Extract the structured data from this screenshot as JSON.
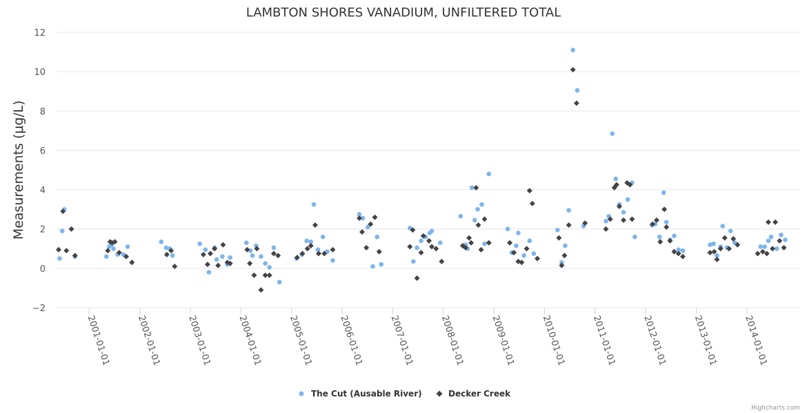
{
  "chart_data": {
    "type": "scatter",
    "title": "LAMBTON SHORES VANADIUM, UNFILTERED TOTAL",
    "ylabel": "Measurements (μg/L)",
    "xlabel": "",
    "ylim": [
      -2,
      12
    ],
    "yticks": [
      "−2",
      "0",
      "2",
      "4",
      "6",
      "8",
      "10",
      "12"
    ],
    "ytick_values": [
      -2,
      0,
      2,
      4,
      6,
      8,
      10,
      12
    ],
    "xlim": [
      "2000-05-10",
      "2015-01-20"
    ],
    "xticks": [
      "2001-01-01",
      "2002-01-01",
      "2003-01-01",
      "2004-01-01",
      "2005-01-01",
      "2006-01-01",
      "2007-01-01",
      "2008-01-01",
      "2009-01-01",
      "2010-01-01",
      "2011-01-01",
      "2012-01-01",
      "2013-01-01",
      "2014-01-01"
    ],
    "grid": true,
    "legend_position": "bottom",
    "credits": "Highcharts.com",
    "series": [
      {
        "name": "The Cut (Ausable River)",
        "color": "#7cb5ec",
        "marker": "circle",
        "points": [
          [
            "2000-06-01",
            0.5
          ],
          [
            "2000-06-20",
            1.9
          ],
          [
            "2000-07-05",
            3.0
          ],
          [
            "2000-09-20",
            0.6
          ],
          [
            "2001-05-05",
            0.6
          ],
          [
            "2001-05-25",
            1.1
          ],
          [
            "2001-06-10",
            1.2
          ],
          [
            "2001-06-25",
            1.0
          ],
          [
            "2001-07-25",
            0.7
          ],
          [
            "2001-09-05",
            0.7
          ],
          [
            "2001-10-05",
            1.1
          ],
          [
            "2002-06-05",
            1.35
          ],
          [
            "2002-07-10",
            1.05
          ],
          [
            "2002-08-05",
            1.0
          ],
          [
            "2002-08-25",
            0.65
          ],
          [
            "2003-03-10",
            1.25
          ],
          [
            "2003-04-20",
            0.95
          ],
          [
            "2003-05-15",
            -0.2
          ],
          [
            "2003-06-25",
            1.05
          ],
          [
            "2003-07-10",
            0.45
          ],
          [
            "2003-08-20",
            0.6
          ],
          [
            "2003-09-25",
            0.2
          ],
          [
            "2003-10-15",
            0.55
          ],
          [
            "2004-02-10",
            1.3
          ],
          [
            "2004-03-10",
            0.9
          ],
          [
            "2004-03-25",
            0.65
          ],
          [
            "2004-04-20",
            1.15
          ],
          [
            "2004-05-25",
            0.6
          ],
          [
            "2004-06-25",
            0.25
          ],
          [
            "2004-07-25",
            0.05
          ],
          [
            "2004-08-25",
            1.05
          ],
          [
            "2004-10-05",
            -0.7
          ],
          [
            "2005-02-05",
            0.5
          ],
          [
            "2005-03-15",
            0.7
          ],
          [
            "2005-04-20",
            1.4
          ],
          [
            "2005-05-20",
            1.35
          ],
          [
            "2005-06-10",
            3.25
          ],
          [
            "2005-07-10",
            0.95
          ],
          [
            "2005-08-15",
            1.6
          ],
          [
            "2005-09-15",
            0.85
          ],
          [
            "2005-10-25",
            0.4
          ],
          [
            "2006-05-05",
            2.75
          ],
          [
            "2006-05-30",
            2.55
          ],
          [
            "2006-07-05",
            2.1
          ],
          [
            "2006-08-10",
            0.1
          ],
          [
            "2006-09-10",
            1.6
          ],
          [
            "2006-10-10",
            0.2
          ],
          [
            "2007-05-05",
            2.05
          ],
          [
            "2007-05-30",
            0.35
          ],
          [
            "2007-06-25",
            1.05
          ],
          [
            "2007-07-25",
            1.4
          ],
          [
            "2007-08-25",
            1.6
          ],
          [
            "2007-09-25",
            1.8
          ],
          [
            "2007-10-10",
            1.9
          ],
          [
            "2007-12-10",
            1.3
          ],
          [
            "2008-05-05",
            2.65
          ],
          [
            "2008-06-10",
            1.2
          ],
          [
            "2008-06-25",
            1.0
          ],
          [
            "2008-07-25",
            4.1
          ],
          [
            "2008-08-15",
            2.45
          ],
          [
            "2008-09-05",
            3.0
          ],
          [
            "2008-10-05",
            3.25
          ],
          [
            "2008-10-25",
            1.25
          ],
          [
            "2008-11-25",
            4.8
          ],
          [
            "2009-04-10",
            2.0
          ],
          [
            "2009-05-10",
            0.8
          ],
          [
            "2009-06-10",
            1.15
          ],
          [
            "2009-06-25",
            1.8
          ],
          [
            "2009-08-05",
            0.65
          ],
          [
            "2009-09-15",
            1.4
          ],
          [
            "2009-10-15",
            0.75
          ],
          [
            "2010-04-05",
            1.95
          ],
          [
            "2010-05-05",
            0.3
          ],
          [
            "2010-05-30",
            1.15
          ],
          [
            "2010-06-25",
            2.95
          ],
          [
            "2010-07-25",
            11.1
          ],
          [
            "2010-08-25",
            9.05
          ],
          [
            "2010-10-10",
            2.15
          ],
          [
            "2011-03-20",
            2.4
          ],
          [
            "2011-04-10",
            2.65
          ],
          [
            "2011-05-05",
            6.85
          ],
          [
            "2011-05-30",
            4.55
          ],
          [
            "2011-06-25",
            3.25
          ],
          [
            "2011-07-25",
            2.85
          ],
          [
            "2011-08-25",
            3.5
          ],
          [
            "2011-09-25",
            4.35
          ],
          [
            "2011-10-15",
            1.6
          ],
          [
            "2012-02-15",
            2.2
          ],
          [
            "2012-03-10",
            2.25
          ],
          [
            "2012-04-10",
            1.6
          ],
          [
            "2012-05-10",
            3.85
          ],
          [
            "2012-05-30",
            2.35
          ],
          [
            "2012-06-25",
            1.45
          ],
          [
            "2012-07-25",
            1.65
          ],
          [
            "2012-08-25",
            0.95
          ],
          [
            "2012-09-25",
            0.9
          ],
          [
            "2013-04-10",
            1.2
          ],
          [
            "2013-05-05",
            1.25
          ],
          [
            "2013-05-30",
            0.65
          ],
          [
            "2013-06-25",
            1.1
          ],
          [
            "2013-07-10",
            2.15
          ],
          [
            "2013-08-10",
            1.05
          ],
          [
            "2013-09-05",
            1.9
          ],
          [
            "2013-10-05",
            1.3
          ],
          [
            "2014-04-10",
            1.1
          ],
          [
            "2014-05-10",
            1.1
          ],
          [
            "2014-06-05",
            1.4
          ],
          [
            "2014-06-25",
            1.6
          ],
          [
            "2014-08-05",
            1.0
          ],
          [
            "2014-09-05",
            1.7
          ],
          [
            "2014-10-05",
            1.45
          ]
        ]
      },
      {
        "name": "Decker Creek",
        "color": "#434348",
        "marker": "diamond",
        "points": [
          [
            "2000-05-25",
            0.95
          ],
          [
            "2000-06-25",
            2.9
          ],
          [
            "2000-07-20",
            0.9
          ],
          [
            "2000-08-25",
            2.0
          ],
          [
            "2000-09-20",
            0.65
          ],
          [
            "2001-05-15",
            0.9
          ],
          [
            "2001-06-01",
            1.35
          ],
          [
            "2001-06-15",
            1.3
          ],
          [
            "2001-07-05",
            1.35
          ],
          [
            "2001-08-05",
            0.8
          ],
          [
            "2001-09-25",
            0.6
          ],
          [
            "2001-11-05",
            0.3
          ],
          [
            "2002-07-15",
            0.7
          ],
          [
            "2002-08-15",
            0.9
          ],
          [
            "2002-09-10",
            0.1
          ],
          [
            "2003-04-05",
            0.7
          ],
          [
            "2003-05-05",
            0.2
          ],
          [
            "2003-05-25",
            0.75
          ],
          [
            "2003-06-25",
            1.0
          ],
          [
            "2003-07-20",
            0.15
          ],
          [
            "2003-08-25",
            1.2
          ],
          [
            "2003-09-25",
            0.3
          ],
          [
            "2003-10-15",
            0.25
          ],
          [
            "2004-02-15",
            0.95
          ],
          [
            "2004-03-05",
            0.25
          ],
          [
            "2004-04-05",
            -0.35
          ],
          [
            "2004-04-25",
            1.0
          ],
          [
            "2004-05-25",
            -1.1
          ],
          [
            "2004-06-25",
            -0.35
          ],
          [
            "2004-07-25",
            -0.35
          ],
          [
            "2004-08-25",
            0.75
          ],
          [
            "2004-09-25",
            0.65
          ],
          [
            "2005-02-10",
            0.55
          ],
          [
            "2005-03-20",
            0.75
          ],
          [
            "2005-04-25",
            1.0
          ],
          [
            "2005-05-20",
            1.15
          ],
          [
            "2005-06-20",
            2.2
          ],
          [
            "2005-07-15",
            0.75
          ],
          [
            "2005-08-25",
            0.75
          ],
          [
            "2005-10-25",
            0.95
          ],
          [
            "2006-05-05",
            2.55
          ],
          [
            "2006-05-25",
            1.85
          ],
          [
            "2006-06-25",
            1.05
          ],
          [
            "2006-07-25",
            2.25
          ],
          [
            "2006-08-25",
            2.6
          ],
          [
            "2006-09-25",
            0.85
          ],
          [
            "2007-05-05",
            1.1
          ],
          [
            "2007-05-25",
            1.95
          ],
          [
            "2007-06-25",
            -0.5
          ],
          [
            "2007-07-25",
            0.8
          ],
          [
            "2007-08-10",
            1.65
          ],
          [
            "2007-09-20",
            1.4
          ],
          [
            "2007-10-10",
            1.1
          ],
          [
            "2007-11-10",
            1.0
          ],
          [
            "2007-12-20",
            0.35
          ],
          [
            "2008-05-20",
            1.15
          ],
          [
            "2008-06-10",
            1.05
          ],
          [
            "2008-07-05",
            1.55
          ],
          [
            "2008-07-20",
            1.3
          ],
          [
            "2008-08-25",
            4.1
          ],
          [
            "2008-09-10",
            2.2
          ],
          [
            "2008-09-30",
            0.95
          ],
          [
            "2008-10-25",
            2.5
          ],
          [
            "2008-11-25",
            1.3
          ],
          [
            "2009-04-25",
            1.3
          ],
          [
            "2009-05-25",
            0.8
          ],
          [
            "2009-06-25",
            0.35
          ],
          [
            "2009-07-20",
            0.3
          ],
          [
            "2009-08-25",
            1.0
          ],
          [
            "2009-09-15",
            3.95
          ],
          [
            "2009-10-05",
            3.3
          ],
          [
            "2009-11-10",
            0.5
          ],
          [
            "2010-04-15",
            1.55
          ],
          [
            "2010-05-05",
            0.15
          ],
          [
            "2010-05-25",
            0.65
          ],
          [
            "2010-06-25",
            2.2
          ],
          [
            "2010-07-25",
            10.1
          ],
          [
            "2010-08-20",
            8.4
          ],
          [
            "2010-10-20",
            2.3
          ],
          [
            "2011-03-20",
            2.0
          ],
          [
            "2011-04-20",
            2.5
          ],
          [
            "2011-05-20",
            4.1
          ],
          [
            "2011-06-05",
            4.25
          ],
          [
            "2011-06-25",
            3.15
          ],
          [
            "2011-07-25",
            2.45
          ],
          [
            "2011-08-20",
            4.35
          ],
          [
            "2011-09-10",
            4.25
          ],
          [
            "2011-09-25",
            2.5
          ],
          [
            "2012-02-20",
            2.25
          ],
          [
            "2012-03-20",
            2.45
          ],
          [
            "2012-04-15",
            1.35
          ],
          [
            "2012-05-15",
            3.0
          ],
          [
            "2012-05-30",
            2.1
          ],
          [
            "2012-06-25",
            1.4
          ],
          [
            "2012-07-25",
            0.85
          ],
          [
            "2012-08-25",
            0.75
          ],
          [
            "2012-09-25",
            0.6
          ],
          [
            "2013-04-10",
            0.8
          ],
          [
            "2013-05-10",
            0.85
          ],
          [
            "2013-05-30",
            0.45
          ],
          [
            "2013-06-25",
            1.0
          ],
          [
            "2013-07-25",
            1.55
          ],
          [
            "2013-08-25",
            1.0
          ],
          [
            "2013-09-25",
            1.5
          ],
          [
            "2013-10-25",
            1.2
          ],
          [
            "2014-03-20",
            0.75
          ],
          [
            "2014-04-25",
            0.85
          ],
          [
            "2014-05-25",
            0.75
          ],
          [
            "2014-06-05",
            2.35
          ],
          [
            "2014-07-05",
            1.0
          ],
          [
            "2014-07-25",
            2.35
          ],
          [
            "2014-08-25",
            1.4
          ],
          [
            "2014-09-25",
            1.05
          ]
        ]
      }
    ]
  }
}
